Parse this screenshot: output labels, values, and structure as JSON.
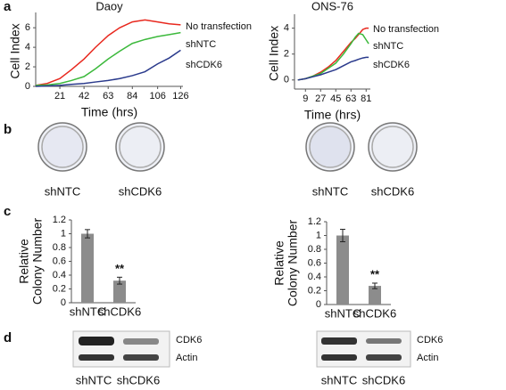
{
  "panel_labels": [
    "a",
    "b",
    "c",
    "d"
  ],
  "chart_data": [
    {
      "type": "line",
      "title": "Daoy",
      "x_label": "Time (hrs)",
      "y_label": "Cell Index",
      "x": [
        0,
        10,
        21,
        31,
        42,
        52,
        63,
        73,
        84,
        95,
        106,
        116,
        126
      ],
      "xlim": [
        0,
        128
      ],
      "xticks": [
        21,
        42,
        63,
        84,
        106,
        126
      ],
      "ylim": [
        0,
        7.2
      ],
      "yticks": [
        0,
        2,
        4,
        6
      ],
      "series": [
        {
          "name": "No transfection",
          "color": "#e8281e",
          "values": [
            0.1,
            0.3,
            0.8,
            1.7,
            2.8,
            4.0,
            5.2,
            6.0,
            6.6,
            6.8,
            6.6,
            6.4,
            6.3
          ]
        },
        {
          "name": "shNTC",
          "color": "#3cb93c",
          "values": [
            0.1,
            0.15,
            0.3,
            0.6,
            1.0,
            1.8,
            2.8,
            3.6,
            4.4,
            4.8,
            5.1,
            5.3,
            5.5
          ]
        },
        {
          "name": "shCDK6",
          "color": "#2a3a8c",
          "values": [
            0,
            0.05,
            0.1,
            0.2,
            0.3,
            0.45,
            0.6,
            0.8,
            1.1,
            1.5,
            2.3,
            2.9,
            3.7
          ]
        }
      ]
    },
    {
      "type": "line",
      "title": "ONS-76",
      "x_label": "Time (hrs)",
      "y_label": "Cell Index",
      "x": [
        0,
        9,
        18,
        27,
        36,
        45,
        54,
        63,
        68,
        72,
        77,
        81,
        84
      ],
      "xlim": [
        -4,
        86
      ],
      "xticks": [
        9,
        27,
        45,
        63,
        81
      ],
      "ylim": [
        -0.7,
        4.8
      ],
      "yticks": [
        0,
        2,
        4
      ],
      "series": [
        {
          "name": "No transfection",
          "color": "#e8281e",
          "values": [
            0,
            0.1,
            0.3,
            0.6,
            1.0,
            1.5,
            2.2,
            2.9,
            3.2,
            3.5,
            3.9,
            4.0,
            4.0
          ]
        },
        {
          "name": "shNTC",
          "color": "#3cb93c",
          "values": [
            0,
            0.1,
            0.3,
            0.5,
            0.9,
            1.3,
            2.0,
            2.8,
            3.3,
            3.6,
            3.5,
            3.1,
            2.8
          ]
        },
        {
          "name": "shCDK6",
          "color": "#2a3a8c",
          "values": [
            0,
            0.1,
            0.25,
            0.4,
            0.6,
            0.8,
            1.1,
            1.4,
            1.5,
            1.6,
            1.7,
            1.75,
            1.75
          ]
        }
      ]
    },
    {
      "type": "bar",
      "y_label": [
        "Relative",
        "Colony Number"
      ],
      "categories": [
        "shNTC",
        "shCDK6"
      ],
      "values": [
        1.0,
        0.32
      ],
      "errors": [
        0.06,
        0.05
      ],
      "color": "#8c8c8c",
      "annotation": "**",
      "ylim": [
        0,
        1.2
      ],
      "yticks": [
        0,
        0.2,
        0.4,
        0.6,
        0.8,
        1,
        1.2
      ]
    },
    {
      "type": "bar",
      "y_label": [
        "Relative",
        "Colony Number"
      ],
      "categories": [
        "shNTC",
        "shCDK6"
      ],
      "values": [
        1.0,
        0.27
      ],
      "errors": [
        0.09,
        0.04
      ],
      "color": "#8c8c8c",
      "annotation": "**",
      "ylim": [
        0,
        1.2
      ],
      "yticks": [
        0,
        0.2,
        0.4,
        0.6,
        0.8,
        1,
        1.2
      ]
    }
  ],
  "colony_images": [
    {
      "labels": [
        "shNTC",
        "shCDK6"
      ]
    },
    {
      "labels": [
        "shNTC",
        "shCDK6"
      ]
    }
  ],
  "western_blots": [
    {
      "bands": [
        "CDK6",
        "Actin"
      ],
      "lanes": [
        "shNTC",
        "shCDK6"
      ]
    },
    {
      "bands": [
        "CDK6",
        "Actin"
      ],
      "lanes": [
        "shNTC",
        "shCDK6"
      ]
    }
  ]
}
